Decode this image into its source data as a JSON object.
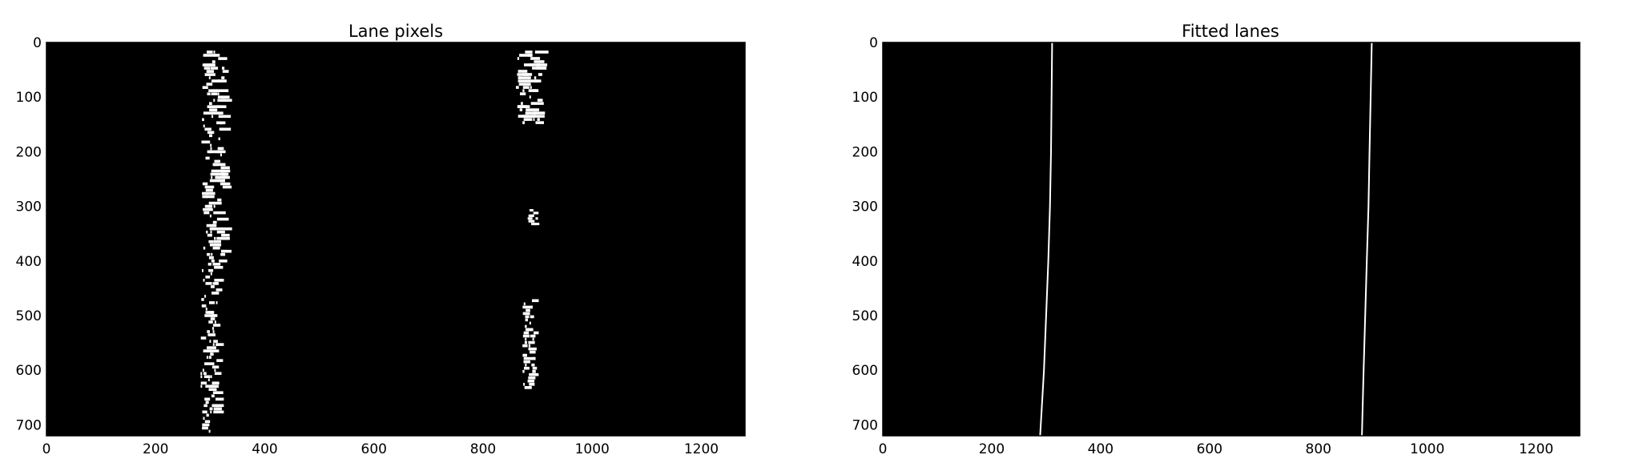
{
  "chart_data": [
    {
      "type": "image",
      "title": "Lane pixels",
      "xlim": [
        0,
        1280
      ],
      "ylim": [
        720,
        0
      ],
      "xticks": [
        0,
        200,
        400,
        600,
        800,
        1000,
        1200
      ],
      "yticks": [
        0,
        100,
        200,
        300,
        400,
        500,
        600,
        700
      ],
      "background": "#000000",
      "foreground": "#ffffff",
      "pixel_blobs": [
        {
          "name": "left-lane-windows",
          "x": [
            284,
            340
          ],
          "y": [
            15,
            415
          ]
        },
        {
          "name": "left-lane-lower",
          "x": [
            282,
            325
          ],
          "y": [
            415,
            715
          ]
        },
        {
          "name": "right-lane-upper",
          "x": [
            860,
            920
          ],
          "y": [
            15,
            150
          ]
        },
        {
          "name": "right-lane-dash",
          "x": [
            880,
            905
          ],
          "y": [
            305,
            335
          ]
        },
        {
          "name": "right-lane-lower",
          "x": [
            872,
            902
          ],
          "y": [
            470,
            635
          ]
        }
      ]
    },
    {
      "type": "line",
      "title": "Fitted lanes",
      "xlim": [
        0,
        1280
      ],
      "ylim": [
        720,
        0
      ],
      "xticks": [
        0,
        200,
        400,
        600,
        800,
        1000,
        1200
      ],
      "yticks": [
        0,
        100,
        200,
        300,
        400,
        500,
        600,
        700
      ],
      "background": "#000000",
      "line_color": "#ffffff",
      "series": [
        {
          "y": [
            0,
            100,
            200,
            300,
            400,
            500,
            600,
            720
          ],
          "x": [
            311,
            310,
            309,
            307,
            304,
            300,
            296,
            289
          ]
        },
        {
          "y": [
            0,
            100,
            200,
            300,
            400,
            500,
            600,
            720
          ],
          "x": [
            898,
            896,
            894,
            892,
            889,
            886,
            883,
            880
          ]
        }
      ]
    }
  ]
}
